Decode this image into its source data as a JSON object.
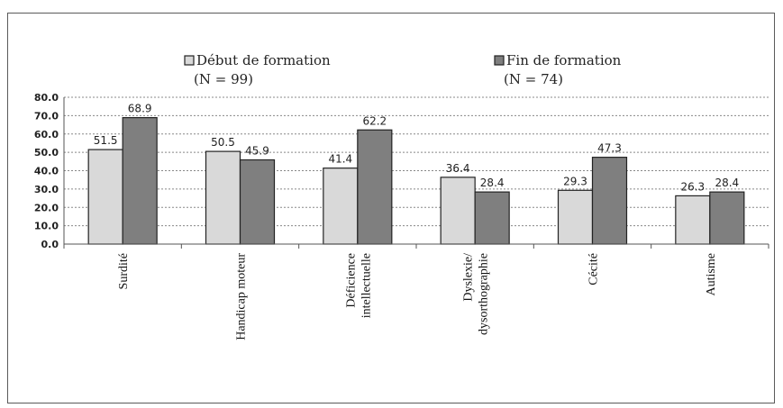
{
  "chart_data": {
    "type": "bar",
    "categories": [
      [
        "Surdité"
      ],
      [
        "Handicap moteur"
      ],
      [
        "Déficience",
        "intellectuelle"
      ],
      [
        "Dyslexie/",
        "dysorthographie"
      ],
      [
        "Cécité"
      ],
      [
        "Autisme"
      ]
    ],
    "series": [
      {
        "name": [
          "Début de formation",
          "(N = 99)"
        ],
        "values": [
          51.5,
          50.5,
          41.4,
          36.4,
          29.3,
          26.3
        ],
        "color": "#d9d9d9"
      },
      {
        "name": [
          "Fin de formation",
          "(N = 74)"
        ],
        "values": [
          68.9,
          45.9,
          62.2,
          28.4,
          47.3,
          28.4
        ],
        "color": "#7f7f7f"
      }
    ],
    "ylim": [
      0,
      80
    ],
    "yticks": [
      0,
      10,
      20,
      30,
      40,
      50,
      60,
      70,
      80
    ],
    "ytick_labels": [
      "0.0",
      "10.0",
      "20.0",
      "30.0",
      "40.0",
      "50.0",
      "60.0",
      "70.0",
      "80.0"
    ],
    "grid": true,
    "legend_position": "top"
  }
}
